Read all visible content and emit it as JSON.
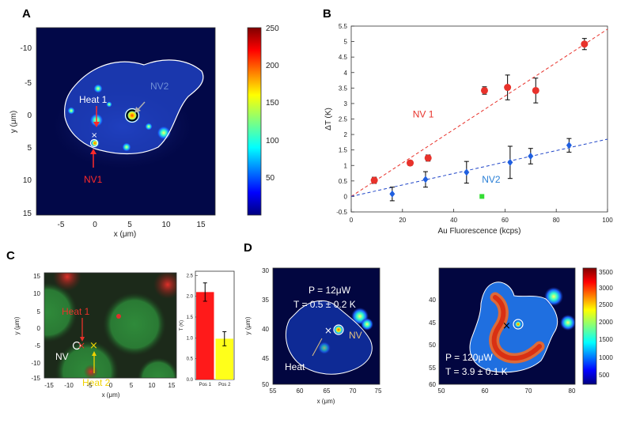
{
  "panels": {
    "a": "A",
    "b": "B",
    "c": "C",
    "d": "D"
  },
  "colors": {
    "nv1_red": "#e8322b",
    "nv2_blue": "#1f5fe0",
    "nv2_label": "#2a7fd6",
    "fit_red": "#e8322b",
    "fit_blue": "#2046c8",
    "green_point": "#33dd33",
    "bar_pos1": "#ff1a1a",
    "bar_pos2": "#ffff1a",
    "heat2_yellow": "#f0d200"
  },
  "panel_a": {
    "colorbar_ticks": [
      "250",
      "200",
      "150",
      "100",
      "50"
    ],
    "y_ticks": [
      "-10",
      "-5",
      "0",
      "5",
      "10",
      "15"
    ],
    "x_ticks": [
      "-5",
      "0",
      "5",
      "10",
      "15"
    ],
    "xlabel": "x (μm)",
    "ylabel": "y (μm)",
    "labels": {
      "heat1": "Heat 1",
      "nv2": "NV2",
      "nv1": "NV1"
    }
  },
  "panel_c": {
    "y_ticks": [
      "15",
      "10",
      "5",
      "0",
      "-5",
      "-10",
      "-15"
    ],
    "x_ticks": [
      "-15",
      "-10",
      "-5",
      "0",
      "5",
      "10",
      "15"
    ],
    "xlabel": "x (μm)",
    "ylabel": "y (μm)",
    "labels": {
      "heat1": "Heat 1",
      "nv": "NV",
      "heat2": "Heat 2"
    }
  },
  "panel_d": {
    "left": {
      "y_ticks": [
        "30",
        "35",
        "40",
        "45",
        "50"
      ],
      "x_ticks": [
        "55",
        "60",
        "65",
        "70",
        "75"
      ],
      "xlabel": "x (μm)",
      "ylabel": "y (μm)",
      "power": "P = 12μW",
      "temp": "T = 0.5 ± 0.2 K",
      "heat": "Heat",
      "nv": "NV"
    },
    "right": {
      "y_ticks": [
        "40",
        "45",
        "50",
        "55",
        "60"
      ],
      "x_ticks": [
        "50",
        "60",
        "70",
        "80"
      ],
      "power": "P = 120μW",
      "temp": "T = 3.9 ± 0.1 K"
    },
    "colorbar_ticks": [
      "3500",
      "3000",
      "2500",
      "2000",
      "1500",
      "1000",
      "500"
    ]
  },
  "chart_data": [
    {
      "type": "scatter",
      "panel": "B",
      "title": "",
      "xlabel": "Au Fluorescence (kcps)",
      "ylabel": "ΔT (K)",
      "xlim": [
        0,
        100
      ],
      "ylim": [
        -0.5,
        5.5
      ],
      "xticks": [
        0,
        20,
        40,
        60,
        80,
        100
      ],
      "yticks": [
        -0.5,
        0,
        0.5,
        1,
        1.5,
        2,
        2.5,
        3,
        3.5,
        4,
        4.5,
        5,
        5.5
      ],
      "grid": false,
      "series": [
        {
          "name": "NV 1",
          "marker": "circle",
          "color": "#e8322b",
          "x": [
            9,
            23,
            30,
            52,
            61,
            72,
            91
          ],
          "y": [
            0.52,
            1.08,
            1.24,
            3.42,
            3.52,
            3.42,
            4.92
          ],
          "err": [
            0.1,
            0.08,
            0.1,
            0.12,
            0.4,
            0.4,
            0.18
          ],
          "fit": {
            "slope": 0.054,
            "intercept": 0
          }
        },
        {
          "name": "NV2",
          "marker": "diamond",
          "color": "#1f5fe0",
          "x": [
            16,
            29,
            45,
            62,
            70,
            85
          ],
          "y": [
            0.08,
            0.55,
            0.78,
            1.1,
            1.3,
            1.65
          ],
          "err": [
            0.22,
            0.25,
            0.35,
            0.52,
            0.25,
            0.22
          ],
          "fit": {
            "slope": 0.0185,
            "intercept": 0
          }
        },
        {
          "marker": "square",
          "color": "#33dd33",
          "x": [
            51
          ],
          "y": [
            0.0
          ],
          "err": [
            0
          ]
        }
      ]
    },
    {
      "type": "bar",
      "panel": "C-inset",
      "ylabel": "T (K)",
      "categories": [
        "Pos 1",
        "Pos 2"
      ],
      "values": [
        2.1,
        0.98
      ],
      "err": [
        0.22,
        0.17
      ],
      "ylim": [
        0,
        2.6
      ],
      "yticks": [
        0,
        0.5,
        1.0,
        1.5,
        2.0,
        2.5
      ],
      "yticklabels": [
        "0.0",
        "0.5",
        "1.0",
        "1.5",
        "2.0",
        "2.5"
      ]
    }
  ]
}
